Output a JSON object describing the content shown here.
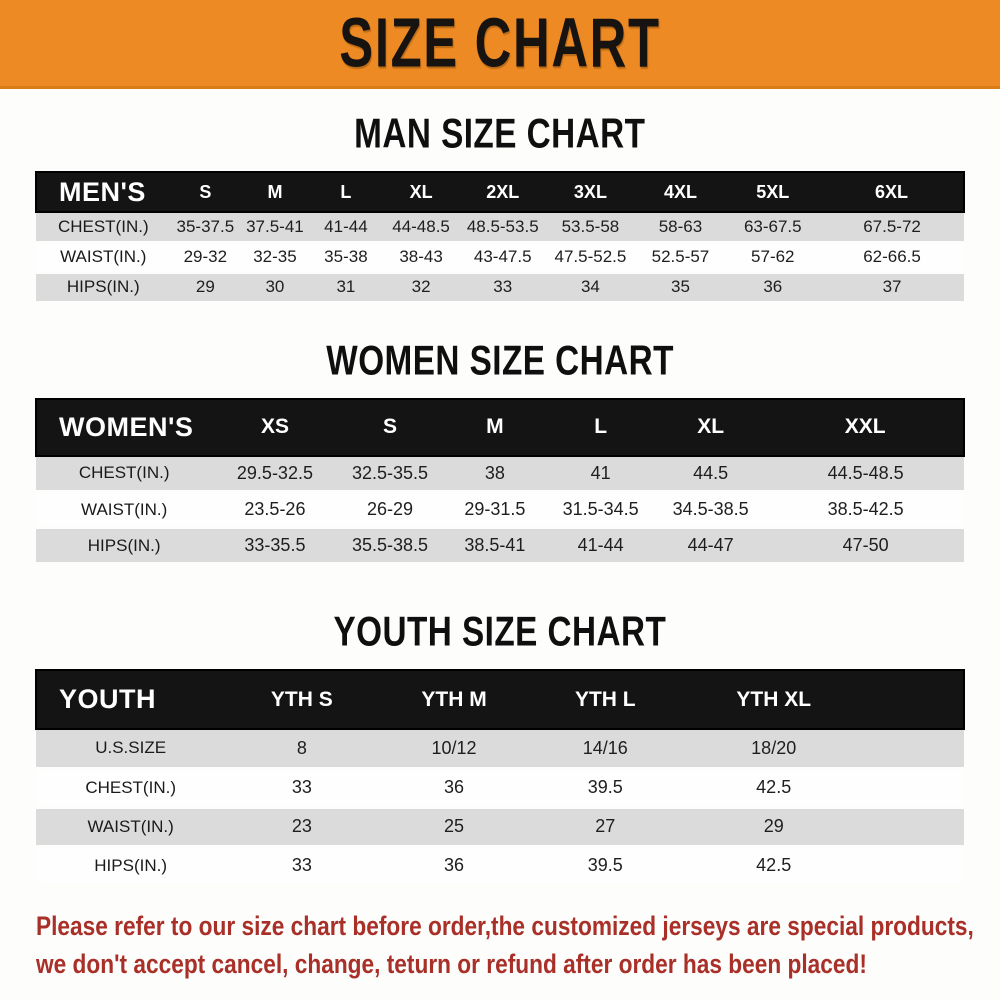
{
  "banner": {
    "title": "SIZE CHART",
    "bg_color": "#ED8A23",
    "text_color": "#171310"
  },
  "sections": [
    {
      "heading": "MAN SIZE CHART",
      "table": {
        "header_label": "MEN'S",
        "columns": [
          "S",
          "M",
          "L",
          "XL",
          "2XL",
          "3XL",
          "4XL",
          "5XL",
          "6XL"
        ],
        "rows": [
          {
            "label": "CHEST(IN.)",
            "values": [
              "35-37.5",
              "37.5-41",
              "41-44",
              "44-48.5",
              "48.5-53.5",
              "53.5-58",
              "58-63",
              "63-67.5",
              "67.5-72"
            ]
          },
          {
            "label": "WAIST(IN.)",
            "values": [
              "29-32",
              "32-35",
              "35-38",
              "38-43",
              "43-47.5",
              "47.5-52.5",
              "52.5-57",
              "57-62",
              "62-66.5"
            ]
          },
          {
            "label": "HIPS(IN.)",
            "values": [
              "29",
              "30",
              "31",
              "32",
              "33",
              "34",
              "35",
              "36",
              "37"
            ]
          }
        ]
      }
    },
    {
      "heading": "WOMEN SIZE CHART",
      "table": {
        "header_label": "WOMEN'S",
        "columns": [
          "XS",
          "S",
          "M",
          "L",
          "XL",
          "XXL"
        ],
        "rows": [
          {
            "label": "CHEST(IN.)",
            "values": [
              "29.5-32.5",
              "32.5-35.5",
              "38",
              "41",
              "44.5",
              "44.5-48.5"
            ]
          },
          {
            "label": "WAIST(IN.)",
            "values": [
              "23.5-26",
              "26-29",
              "29-31.5",
              "31.5-34.5",
              "34.5-38.5",
              "38.5-42.5"
            ]
          },
          {
            "label": "HIPS(IN.)",
            "values": [
              "33-35.5",
              "35.5-38.5",
              "38.5-41",
              "41-44",
              "44-47",
              "47-50"
            ]
          }
        ]
      }
    },
    {
      "heading": "YOUTH SIZE CHART",
      "table": {
        "header_label": "YOUTH",
        "filler_col": true,
        "columns": [
          "YTH S",
          "YTH M",
          "YTH L",
          "YTH XL"
        ],
        "rows": [
          {
            "label": "U.S.SIZE",
            "values": [
              "8",
              "10/12",
              "14/16",
              "18/20"
            ]
          },
          {
            "label": "CHEST(IN.)",
            "values": [
              "33",
              "36",
              "39.5",
              "42.5"
            ]
          },
          {
            "label": "WAIST(IN.)",
            "values": [
              "23",
              "25",
              "27",
              "29"
            ]
          },
          {
            "label": "HIPS(IN.)",
            "values": [
              "33",
              "36",
              "39.5",
              "42.5"
            ]
          }
        ]
      }
    }
  ],
  "footer": {
    "line1": "Please refer to our size chart before order,the customized jerseys are special products,",
    "line2": "we don't accept cancel, change, teturn or refund after order has been placed!",
    "text_color": "#A93028"
  }
}
